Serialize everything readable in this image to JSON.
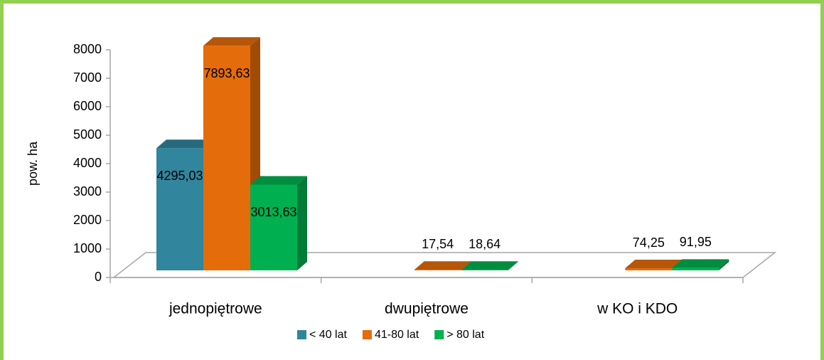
{
  "chart_data": {
    "type": "bar3d",
    "categories": [
      "jednopiętrowe",
      "dwupiętrowe",
      "w KO i KDO"
    ],
    "y_axis_label": "pow. ha",
    "ylim": [
      0,
      8000
    ],
    "yticks": [
      0,
      1000,
      2000,
      3000,
      4000,
      5000,
      6000,
      7000,
      8000
    ],
    "legend": "bottom",
    "series": [
      {
        "name": "< 40 lat",
        "color": "#31859c",
        "values": [
          4295.03,
          null,
          null
        ],
        "value_labels": [
          "4295,03",
          null,
          null
        ]
      },
      {
        "name": "41-80 lat",
        "color": "#e46c0a",
        "values": [
          7893.63,
          17.54,
          74.25
        ],
        "value_labels": [
          "7893,63",
          "17,54",
          "74,25"
        ]
      },
      {
        "name": "> 80 lat",
        "color": "#00b050",
        "values": [
          3013.63,
          18.64,
          91.95
        ],
        "value_labels": [
          "3013,63",
          "18,64",
          "91,95"
        ]
      }
    ]
  }
}
